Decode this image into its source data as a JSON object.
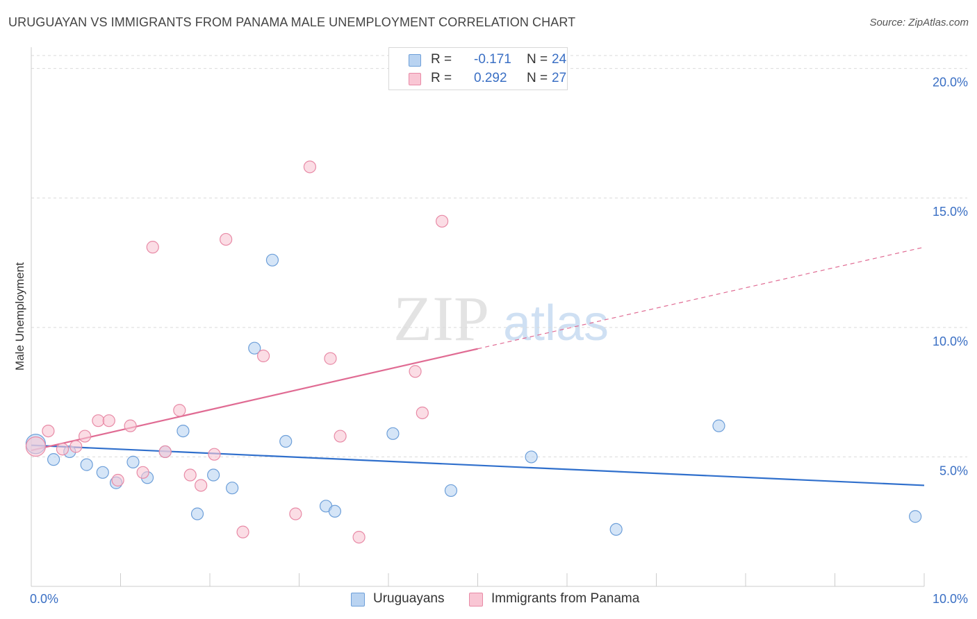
{
  "title": "URUGUAYAN VS IMMIGRANTS FROM PANAMA MALE UNEMPLOYMENT CORRELATION CHART",
  "source": "Source: ZipAtlas.com",
  "watermark": {
    "zip": "ZIP",
    "atlas": "atlas"
  },
  "legend": {
    "r_label": "R =",
    "n_label": "N =",
    "uruguayans": {
      "r": "-0.171",
      "n": "24"
    },
    "panama": {
      "r": "0.292",
      "n": "27"
    }
  },
  "colors": {
    "blue_fill": "#b9d3f1",
    "blue_stroke": "#6d9fd9",
    "blue_line": "#2f6fcc",
    "pink_fill": "#f9c6d4",
    "pink_stroke": "#e88aa6",
    "pink_line": "#e06b93",
    "axis_text": "#3a6fc4",
    "grid": "#d9d9d9"
  },
  "chart_data": {
    "type": "scatter",
    "title": "URUGUAYAN VS IMMIGRANTS FROM PANAMA MALE UNEMPLOYMENT CORRELATION CHART",
    "xlabel": "",
    "ylabel": "Male Unemployment",
    "xlim": [
      0,
      10
    ],
    "ylim": [
      0,
      20.5
    ],
    "x_tick_labels": [
      "0.0%",
      "10.0%"
    ],
    "y_ticks": [
      5,
      10,
      15,
      20
    ],
    "y_tick_labels": [
      "5.0%",
      "10.0%",
      "15.0%",
      "20.0%"
    ],
    "series": [
      {
        "name": "Uruguayans",
        "color": "blue",
        "points": [
          [
            0.05,
            5.5
          ],
          [
            0.25,
            4.9
          ],
          [
            0.43,
            5.2
          ],
          [
            0.62,
            4.7
          ],
          [
            0.8,
            4.4
          ],
          [
            0.95,
            4.0
          ],
          [
            1.14,
            4.8
          ],
          [
            1.3,
            4.2
          ],
          [
            1.5,
            5.2
          ],
          [
            1.7,
            6.0
          ],
          [
            1.86,
            2.8
          ],
          [
            2.04,
            4.3
          ],
          [
            2.25,
            3.8
          ],
          [
            2.5,
            9.2
          ],
          [
            2.7,
            12.6
          ],
          [
            2.85,
            5.6
          ],
          [
            3.3,
            3.1
          ],
          [
            3.4,
            2.9
          ],
          [
            4.05,
            5.9
          ],
          [
            4.7,
            3.7
          ],
          [
            5.6,
            5.0
          ],
          [
            6.55,
            2.2
          ],
          [
            7.7,
            6.2
          ],
          [
            9.9,
            2.7
          ]
        ],
        "trend": {
          "x": [
            0,
            10
          ],
          "y": [
            5.45,
            3.9
          ],
          "dashed_from": null
        }
      },
      {
        "name": "Immigrants from Panama",
        "color": "pink",
        "points": [
          [
            0.05,
            5.4
          ],
          [
            0.19,
            6.0
          ],
          [
            0.35,
            5.3
          ],
          [
            0.5,
            5.4
          ],
          [
            0.6,
            5.8
          ],
          [
            0.75,
            6.4
          ],
          [
            0.87,
            6.4
          ],
          [
            0.97,
            4.1
          ],
          [
            1.11,
            6.2
          ],
          [
            1.25,
            4.4
          ],
          [
            1.36,
            13.1
          ],
          [
            1.5,
            5.2
          ],
          [
            1.66,
            6.8
          ],
          [
            1.78,
            4.3
          ],
          [
            1.9,
            3.9
          ],
          [
            2.05,
            5.1
          ],
          [
            2.18,
            13.4
          ],
          [
            2.37,
            2.1
          ],
          [
            2.6,
            8.9
          ],
          [
            2.96,
            2.8
          ],
          [
            3.12,
            16.2
          ],
          [
            3.35,
            8.8
          ],
          [
            3.46,
            5.8
          ],
          [
            3.67,
            1.9
          ],
          [
            4.3,
            8.3
          ],
          [
            4.38,
            6.7
          ],
          [
            4.6,
            14.1
          ]
        ],
        "trend": {
          "x": [
            0,
            10
          ],
          "y": [
            5.25,
            13.1
          ],
          "dashed_from": 5.0
        }
      }
    ]
  },
  "bottom_legend": [
    "Uruguayans",
    "Immigrants from Panama"
  ]
}
